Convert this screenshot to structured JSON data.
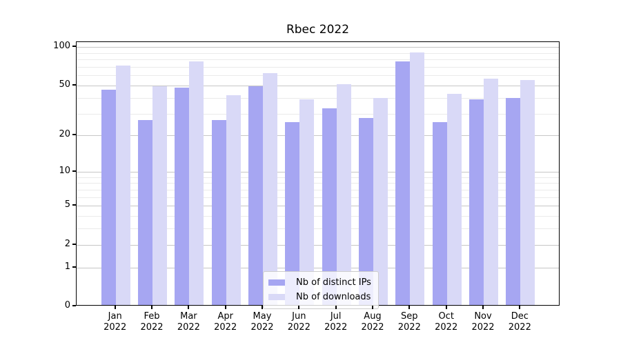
{
  "title": "Rbec 2022",
  "colors": {
    "bar_distinct_ips": "#a6a6f2",
    "bar_downloads": "#d9d9f7",
    "grid_major": "#c6c6c6",
    "grid_minor": "#eaeaea",
    "spine": "#000000"
  },
  "legend": {
    "items": [
      {
        "label": "Nb of distinct IPs",
        "color": "#a6a6f2"
      },
      {
        "label": "Nb of downloads",
        "color": "#d9d9f7"
      }
    ]
  },
  "axes": {
    "y_tick_values": [
      100,
      50,
      20,
      10,
      5,
      2,
      1,
      0
    ],
    "y_minor_grid_values": [
      3,
      4,
      6,
      7,
      8,
      9,
      30,
      40,
      60,
      70,
      80,
      90
    ],
    "x_year_line": "2022"
  },
  "chart_data": {
    "type": "bar",
    "title": "Rbec 2022",
    "categories": [
      "Jan 2022",
      "Feb 2022",
      "Mar 2022",
      "Apr 2022",
      "May 2022",
      "Jun 2022",
      "Jul 2022",
      "Aug 2022",
      "Sep 2022",
      "Oct 2022",
      "Nov 2022",
      "Dec 2022"
    ],
    "series": [
      {
        "name": "Nb of distinct IPs",
        "values": [
          45,
          26,
          47,
          26,
          48,
          25,
          32,
          27,
          76,
          25,
          38,
          39
        ]
      },
      {
        "name": "Nb of downloads",
        "values": [
          70,
          48,
          76,
          41,
          61,
          38,
          50,
          39,
          89,
          42,
          55,
          54
        ]
      }
    ],
    "yscale": "log1p",
    "yticks": [
      0,
      1,
      2,
      5,
      10,
      20,
      50,
      100
    ],
    "ylim": [
      0,
      110
    ],
    "grid": true,
    "legend_position": "lower center"
  }
}
